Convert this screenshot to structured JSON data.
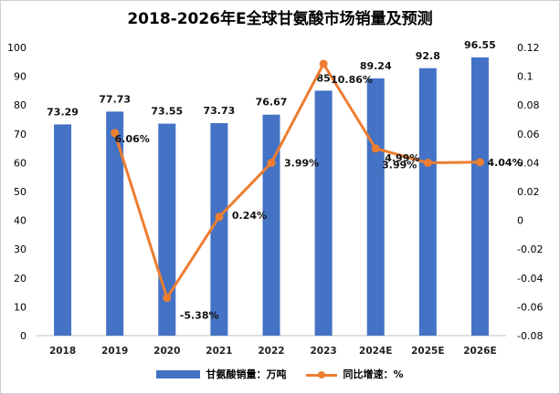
{
  "chart_data": {
    "type": "bar",
    "title": "2018-2026年E全球甘氨酸市场销量及预测",
    "categories": [
      "2018",
      "2019",
      "2020",
      "2021",
      "2022",
      "2023",
      "2024E",
      "2025E",
      "2026E"
    ],
    "series": [
      {
        "name": "甘氨酸销量：万吨",
        "type": "bar",
        "axis": "left",
        "values": [
          73.29,
          77.73,
          73.55,
          73.73,
          76.67,
          85,
          89.24,
          92.8,
          96.55
        ],
        "labels": [
          "73.29",
          "77.73",
          "73.55",
          "73.73",
          "76.67",
          "85",
          "89.24",
          "92.8",
          "96.55"
        ],
        "color": "#4472c4"
      },
      {
        "name": "同比增速：%",
        "type": "line",
        "axis": "right",
        "values": [
          null,
          0.0606,
          -0.0538,
          0.0024,
          0.0399,
          0.1086,
          0.0499,
          0.0399,
          0.0404
        ],
        "labels": [
          "",
          "6.06%",
          "-5.38%",
          "0.24%",
          "3.99%",
          "10.86%",
          "4.99%",
          "3.99%",
          "4.04%"
        ],
        "color": "#ed7d31"
      }
    ],
    "y_left": {
      "min": 0,
      "max": 100,
      "step": 10,
      "ticks": [
        "0",
        "10",
        "20",
        "30",
        "40",
        "50",
        "60",
        "70",
        "80",
        "90",
        "100"
      ]
    },
    "y_right": {
      "min": -0.08,
      "max": 0.12,
      "step": 0.02,
      "ticks": [
        "-0.08",
        "-0.06",
        "-0.04",
        "-0.02",
        "0",
        "0.02",
        "0.04",
        "0.06",
        "0.08",
        "0.1",
        "0.12"
      ]
    },
    "grid": false,
    "legend_position": "bottom"
  }
}
